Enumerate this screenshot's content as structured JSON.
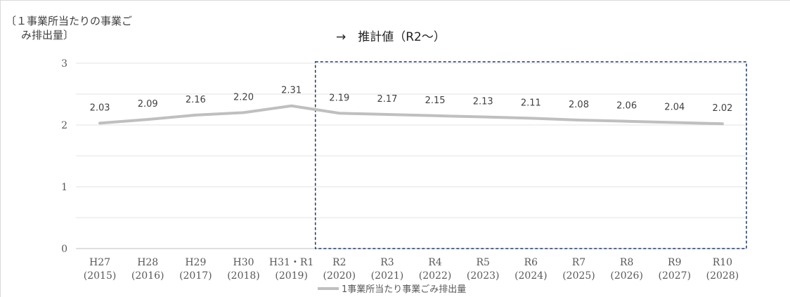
{
  "chart_data": {
    "type": "line",
    "ylabel_line1": "〔１事業所当たりの事業ご",
    "ylabel_line2": "み排出量〕",
    "projection_label": "→　推計値（R2～）",
    "ylim": [
      0,
      3
    ],
    "yticks": [
      "0",
      "1",
      "2",
      "3"
    ],
    "categories": [
      [
        "H27",
        "(2015)"
      ],
      [
        "H28",
        "(2016)"
      ],
      [
        "H29",
        "(2017)"
      ],
      [
        "H30",
        "(2018)"
      ],
      [
        "H31・R1",
        "(2019)"
      ],
      [
        "R2",
        "(2020)"
      ],
      [
        "R3",
        "(2021)"
      ],
      [
        "R4",
        "(2022)"
      ],
      [
        "R5",
        "(2023)"
      ],
      [
        "R6",
        "(2024)"
      ],
      [
        "R7",
        "(2025)"
      ],
      [
        "R8",
        "(2026)"
      ],
      [
        "R9",
        "(2027)"
      ],
      [
        "R10",
        "(2028)"
      ]
    ],
    "series": [
      {
        "name": "1事業所当たり事業ごみ排出量",
        "color": "#bfbfbf",
        "values": [
          2.03,
          2.09,
          2.16,
          2.2,
          2.31,
          2.19,
          2.17,
          2.15,
          2.13,
          2.11,
          2.08,
          2.06,
          2.04,
          2.02
        ],
        "labels": [
          "2.03",
          "2.09",
          "2.16",
          "2.20",
          "2.31",
          "2.19",
          "2.17",
          "2.15",
          "2.13",
          "2.11",
          "2.08",
          "2.06",
          "2.04",
          "2.02"
        ]
      }
    ],
    "grid": true,
    "legend": "bottom",
    "projection_box_color": "#1f3864"
  }
}
